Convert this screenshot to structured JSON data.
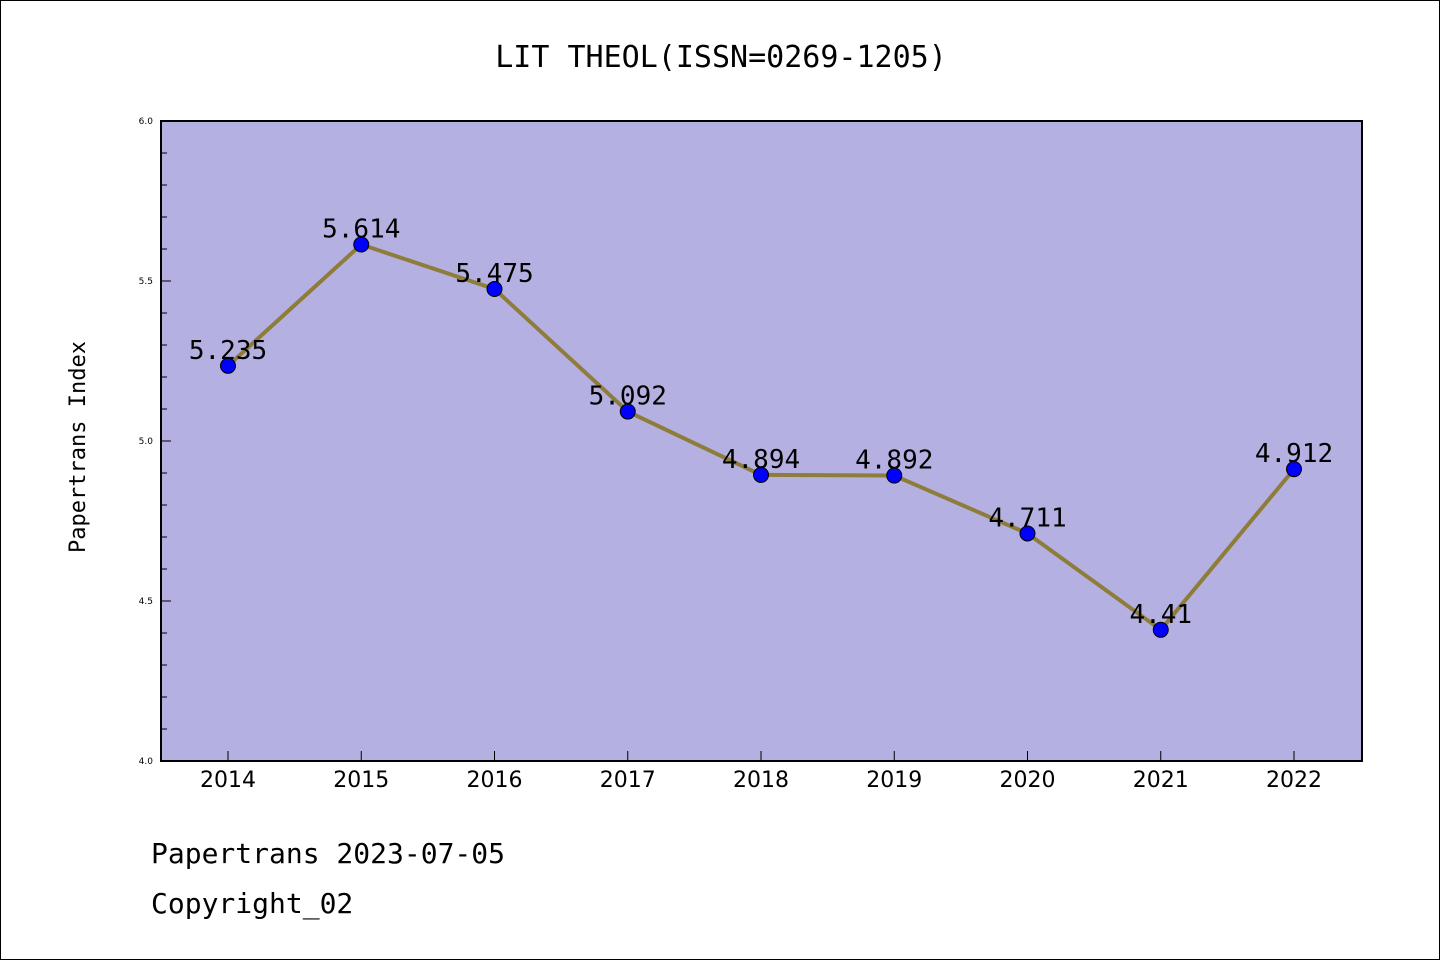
{
  "chart_data": {
    "type": "line",
    "title": "LIT THEOL(ISSN=0269-1205)",
    "xlabel": "",
    "ylabel": "Papertrans Index",
    "categories": [
      "2014",
      "2015",
      "2016",
      "2017",
      "2018",
      "2019",
      "2020",
      "2021",
      "2022"
    ],
    "series": [
      {
        "values": [
          5.235,
          5.614,
          5.475,
          5.092,
          4.894,
          4.892,
          4.711,
          4.41,
          4.912
        ],
        "data_labels": [
          "5.235",
          "5.614",
          "5.475",
          "5.092",
          "4.894",
          "4.892",
          "4.711",
          "4.41",
          "4.912"
        ]
      }
    ],
    "ylim": [
      4.0,
      6.0
    ],
    "yticks": [
      4.0,
      4.5,
      5.0,
      5.5,
      6.0
    ],
    "ytick_labels": [
      "4.0",
      "4.5",
      "5.0",
      "5.5",
      "6.0"
    ],
    "grid": false,
    "colors": {
      "plot_background": "#b5b0e2",
      "line": "#8e7d3a",
      "marker": "#0000ff"
    }
  },
  "footer": {
    "date_line": "Papertrans 2023-07-05",
    "copyright_line": "Copyright_02"
  }
}
